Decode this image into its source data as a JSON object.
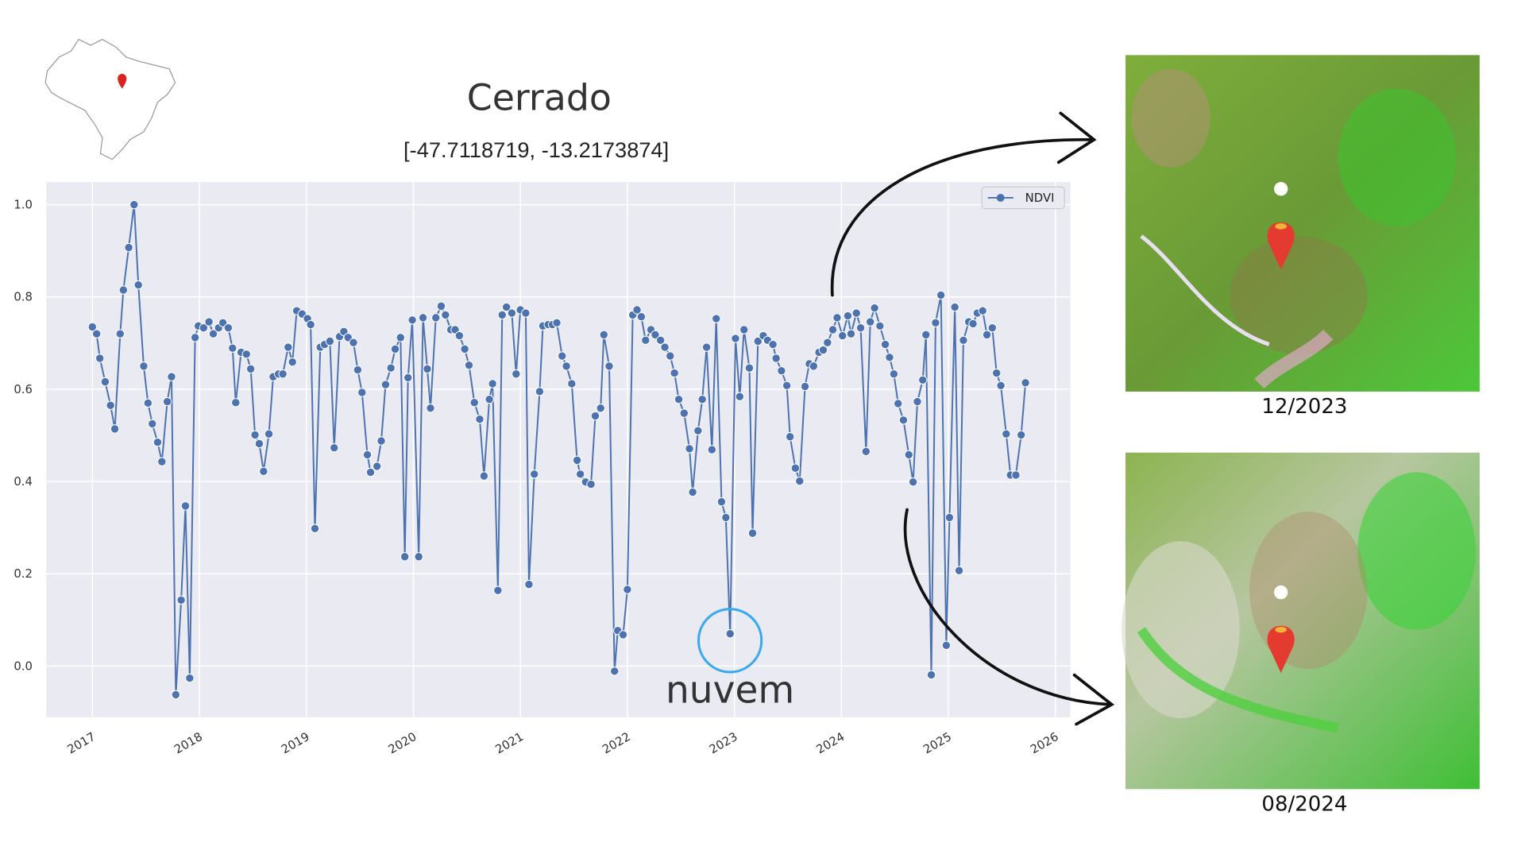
{
  "chart_data": {
    "type": "line",
    "title": "Cerrado",
    "subtitle": "[-47.7118719, -13.2173874]",
    "x": [
      2017.0,
      2017.04,
      2017.07,
      2017.12,
      2017.17,
      2017.21,
      2017.26,
      2017.29,
      2017.34,
      2017.39,
      2017.43,
      2017.48,
      2017.52,
      2017.56,
      2017.61,
      2017.65,
      2017.7,
      2017.74,
      2017.78,
      2017.83,
      2017.87,
      2017.91,
      2017.96,
      2017.99,
      2018.04,
      2018.09,
      2018.13,
      2018.18,
      2018.22,
      2018.27,
      2018.31,
      2018.34,
      2018.39,
      2018.44,
      2018.48,
      2018.52,
      2018.56,
      2018.6,
      2018.65,
      2018.69,
      2018.74,
      2018.78,
      2018.83,
      2018.87,
      2018.91,
      2018.96,
      2019.01,
      2019.04,
      2019.08,
      2019.13,
      2019.17,
      2019.22,
      2019.26,
      2019.31,
      2019.35,
      2019.39,
      2019.44,
      2019.48,
      2019.52,
      2019.57,
      2019.6,
      2019.66,
      2019.7,
      2019.74,
      2019.79,
      2019.83,
      2019.88,
      2019.92,
      2019.95,
      2019.99,
      2020.05,
      2020.09,
      2020.13,
      2020.16,
      2020.21,
      2020.26,
      2020.3,
      2020.35,
      2020.39,
      2020.43,
      2020.48,
      2020.52,
      2020.57,
      2020.62,
      2020.66,
      2020.71,
      2020.74,
      2020.79,
      2020.83,
      2020.87,
      2020.92,
      2020.96,
      2021.0,
      2021.05,
      2021.08,
      2021.13,
      2021.18,
      2021.21,
      2021.26,
      2021.3,
      2021.34,
      2021.39,
      2021.43,
      2021.48,
      2021.53,
      2021.56,
      2021.61,
      2021.66,
      2021.7,
      2021.75,
      2021.78,
      2021.83,
      2021.88,
      2021.91,
      2021.96,
      2022.0,
      2022.05,
      2022.09,
      2022.13,
      2022.17,
      2022.22,
      2022.26,
      2022.31,
      2022.35,
      2022.4,
      2022.44,
      2022.48,
      2022.53,
      2022.58,
      2022.61,
      2022.66,
      2022.7,
      2022.74,
      2022.79,
      2022.83,
      2022.88,
      2022.92,
      2022.96,
      2023.01,
      2023.05,
      2023.09,
      2023.14,
      2023.17,
      2023.22,
      2023.27,
      2023.31,
      2023.36,
      2023.39,
      2023.44,
      2023.49,
      2023.52,
      2023.57,
      2023.61,
      2023.66,
      2023.7,
      2023.74,
      2023.79,
      2023.83,
      2023.87,
      2023.92,
      2023.96,
      2024.01,
      2024.06,
      2024.09,
      2024.14,
      2024.18,
      2024.23,
      2024.27,
      2024.31,
      2024.36,
      2024.41,
      2024.45,
      2024.49,
      2024.53,
      2024.58,
      2024.63,
      2024.67,
      2024.71,
      2024.76,
      2024.79,
      2024.84,
      2024.88,
      2024.93,
      2024.98,
      2025.01,
      2025.06,
      2025.1,
      2025.14,
      2025.19,
      2025.23,
      2025.27,
      2025.32,
      2025.36,
      2025.41,
      2025.45,
      2025.49,
      2025.54,
      2025.58,
      2025.63,
      2025.68,
      2025.72
    ],
    "series": [
      {
        "name": "NDVI",
        "color": "#4c72b0",
        "values": [
          0.735,
          0.72,
          0.667,
          0.616,
          0.565,
          0.514,
          0.72,
          0.815,
          0.907,
          1.0,
          0.826,
          0.65,
          0.57,
          0.525,
          0.485,
          0.443,
          0.573,
          0.627,
          -0.062,
          0.143,
          0.347,
          -0.026,
          0.712,
          0.737,
          0.733,
          0.746,
          0.72,
          0.733,
          0.744,
          0.733,
          0.689,
          0.571,
          0.68,
          0.676,
          0.644,
          0.501,
          0.482,
          0.422,
          0.503,
          0.627,
          0.633,
          0.633,
          0.691,
          0.659,
          0.77,
          0.763,
          0.753,
          0.74,
          0.298,
          0.691,
          0.697,
          0.704,
          0.473,
          0.714,
          0.725,
          0.712,
          0.701,
          0.642,
          0.593,
          0.458,
          0.42,
          0.433,
          0.488,
          0.61,
          0.646,
          0.687,
          0.712,
          0.237,
          0.625,
          0.75,
          0.237,
          0.755,
          0.644,
          0.559,
          0.755,
          0.78,
          0.761,
          0.729,
          0.729,
          0.716,
          0.687,
          0.652,
          0.571,
          0.535,
          0.412,
          0.578,
          0.612,
          0.164,
          0.761,
          0.778,
          0.765,
          0.633,
          0.772,
          0.765,
          0.177,
          0.416,
          0.595,
          0.737,
          0.74,
          0.74,
          0.744,
          0.672,
          0.65,
          0.612,
          0.446,
          0.416,
          0.399,
          0.394,
          0.542,
          0.559,
          0.718,
          0.65,
          -0.011,
          0.077,
          0.068,
          0.166,
          0.761,
          0.772,
          0.757,
          0.706,
          0.729,
          0.718,
          0.706,
          0.691,
          0.672,
          0.635,
          0.578,
          0.548,
          0.471,
          0.377,
          0.51,
          0.578,
          0.691,
          0.469,
          0.753,
          0.356,
          0.322,
          0.07,
          0.71,
          0.584,
          0.729,
          0.646,
          0.288,
          0.704,
          0.716,
          0.706,
          0.697,
          0.667,
          0.64,
          0.608,
          0.497,
          0.429,
          0.401,
          0.606,
          0.655,
          0.65,
          0.68,
          0.685,
          0.701,
          0.729,
          0.755,
          0.716,
          0.759,
          0.72,
          0.765,
          0.733,
          0.465,
          0.746,
          0.776,
          0.737,
          0.697,
          0.669,
          0.633,
          0.569,
          0.533,
          0.458,
          0.399,
          0.573,
          0.62,
          0.718,
          -0.019,
          0.744,
          0.804,
          0.045,
          0.322,
          0.778,
          0.207,
          0.706,
          0.746,
          0.742,
          0.765,
          0.77,
          0.718,
          0.733,
          0.635,
          0.608,
          0.503,
          0.414,
          0.414,
          0.501,
          0.614
        ]
      }
    ],
    "xlim": [
      2016.57,
      2026.14
    ],
    "xticks": [
      2017,
      2018,
      2019,
      2020,
      2021,
      2022,
      2023,
      2024,
      2025,
      2026
    ],
    "ylim": [
      -0.111,
      1.049
    ],
    "yticks": [
      {
        "value": 0,
        "label": "0.0"
      },
      0.2,
      0.4,
      0.6,
      0.8,
      {
        "value": 1,
        "label": "1.0"
      }
    ],
    "grid": true,
    "legend": "upper right",
    "annotations": [
      "nuvem"
    ]
  },
  "images": [
    {
      "caption": "12/2023"
    },
    {
      "caption": "08/2024"
    }
  ]
}
